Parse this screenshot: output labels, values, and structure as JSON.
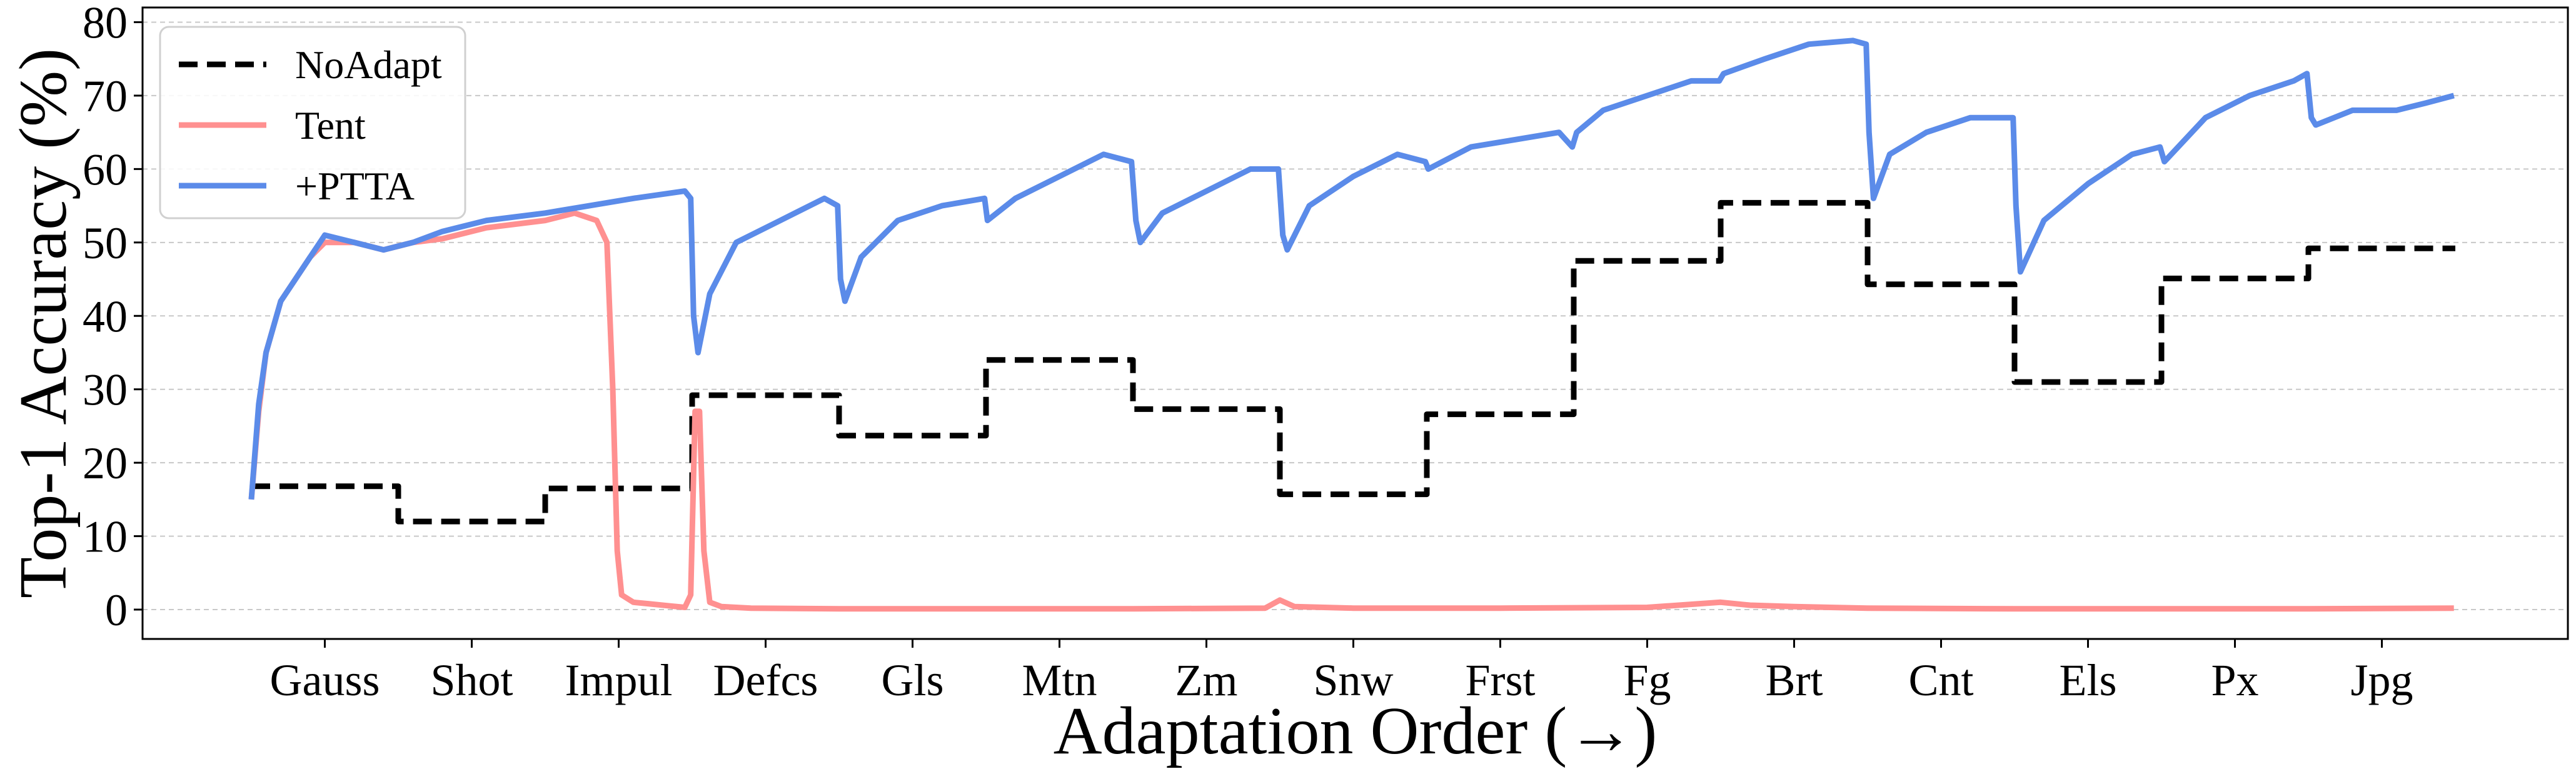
{
  "chart_data": {
    "type": "line",
    "ylabel": "Top-1 Accuracy (%)",
    "xlabel": "Adaptation Order (→)",
    "ylim": [
      -4,
      82
    ],
    "yticks": [
      0,
      10,
      20,
      30,
      40,
      50,
      60,
      70,
      80
    ],
    "grid": "horizontal-dashed",
    "legend_position": "top-left",
    "categories": [
      "Gauss",
      "Shot",
      "Impul",
      "Defcs",
      "Gls",
      "Mtn",
      "Zm",
      "Snw",
      "Frst",
      "Fg",
      "Brt",
      "Cnt",
      "Els",
      "Px",
      "Jpg"
    ],
    "series": [
      {
        "name": "NoAdapt",
        "color": "#000000",
        "style": "dashed",
        "values": [
          16.8,
          12.0,
          16.5,
          29.2,
          23.7,
          34.0,
          27.3,
          15.7,
          26.6,
          47.5,
          55.4,
          44.3,
          31.0,
          45.1,
          49.2
        ]
      },
      {
        "name": "Tent",
        "color": "#ff9090",
        "style": "solid",
        "points": [
          [
            0.0,
            15
          ],
          [
            0.05,
            27
          ],
          [
            0.1,
            35
          ],
          [
            0.2,
            42
          ],
          [
            0.3,
            45
          ],
          [
            0.4,
            48
          ],
          [
            0.5,
            50
          ],
          [
            0.7,
            50
          ],
          [
            0.9,
            49
          ],
          [
            1.1,
            50
          ],
          [
            1.3,
            50.5
          ],
          [
            1.6,
            52
          ],
          [
            2.0,
            53
          ],
          [
            2.2,
            54
          ],
          [
            2.35,
            53
          ],
          [
            2.42,
            50
          ],
          [
            2.46,
            30
          ],
          [
            2.49,
            8
          ],
          [
            2.52,
            2
          ],
          [
            2.6,
            1
          ],
          [
            2.7,
            0.8
          ],
          [
            2.85,
            0.5
          ],
          [
            2.95,
            0.3
          ],
          [
            2.99,
            2
          ],
          [
            3.02,
            27
          ],
          [
            3.05,
            27
          ],
          [
            3.08,
            8
          ],
          [
            3.12,
            1
          ],
          [
            3.2,
            0.4
          ],
          [
            3.4,
            0.2
          ],
          [
            4.0,
            0.1
          ],
          [
            5.0,
            0.1
          ],
          [
            6.0,
            0.1
          ],
          [
            6.9,
            0.2
          ],
          [
            7.0,
            1.3
          ],
          [
            7.1,
            0.4
          ],
          [
            7.5,
            0.2
          ],
          [
            8.5,
            0.2
          ],
          [
            9.5,
            0.3
          ],
          [
            10.0,
            1.0
          ],
          [
            10.2,
            0.6
          ],
          [
            10.5,
            0.4
          ],
          [
            11.0,
            0.2
          ],
          [
            12.0,
            0.1
          ],
          [
            13.0,
            0.1
          ],
          [
            14.0,
            0.1
          ],
          [
            14.99,
            0.2
          ]
        ]
      },
      {
        "name": "+PTTA",
        "color": "#5b8be9",
        "style": "solid",
        "points": [
          [
            0.0,
            15
          ],
          [
            0.05,
            28
          ],
          [
            0.1,
            35
          ],
          [
            0.2,
            42
          ],
          [
            0.3,
            45
          ],
          [
            0.4,
            48
          ],
          [
            0.5,
            51
          ],
          [
            0.7,
            50
          ],
          [
            0.9,
            49
          ],
          [
            1.1,
            50
          ],
          [
            1.3,
            51.5
          ],
          [
            1.6,
            53
          ],
          [
            2.0,
            54
          ],
          [
            2.3,
            55
          ],
          [
            2.6,
            56
          ],
          [
            2.95,
            57
          ],
          [
            2.99,
            56
          ],
          [
            3.01,
            40
          ],
          [
            3.04,
            35
          ],
          [
            3.12,
            43
          ],
          [
            3.3,
            50
          ],
          [
            3.6,
            53
          ],
          [
            3.9,
            56
          ],
          [
            3.99,
            55
          ],
          [
            4.01,
            45
          ],
          [
            4.04,
            42
          ],
          [
            4.15,
            48
          ],
          [
            4.4,
            53
          ],
          [
            4.7,
            55
          ],
          [
            4.99,
            56
          ],
          [
            5.01,
            53
          ],
          [
            5.2,
            56
          ],
          [
            5.5,
            59
          ],
          [
            5.8,
            62
          ],
          [
            5.99,
            61
          ],
          [
            6.02,
            53
          ],
          [
            6.05,
            50
          ],
          [
            6.2,
            54
          ],
          [
            6.5,
            57
          ],
          [
            6.8,
            60
          ],
          [
            6.99,
            60
          ],
          [
            7.02,
            51
          ],
          [
            7.05,
            49
          ],
          [
            7.2,
            55
          ],
          [
            7.5,
            59
          ],
          [
            7.8,
            62
          ],
          [
            7.99,
            61
          ],
          [
            8.01,
            60
          ],
          [
            8.3,
            63
          ],
          [
            8.6,
            64
          ],
          [
            8.9,
            65
          ],
          [
            8.99,
            63
          ],
          [
            9.02,
            65
          ],
          [
            9.2,
            68
          ],
          [
            9.5,
            70
          ],
          [
            9.8,
            72
          ],
          [
            9.99,
            72
          ],
          [
            10.02,
            73
          ],
          [
            10.3,
            75
          ],
          [
            10.6,
            77
          ],
          [
            10.9,
            77.5
          ],
          [
            10.99,
            77
          ],
          [
            11.01,
            65
          ],
          [
            11.04,
            56
          ],
          [
            11.15,
            62
          ],
          [
            11.4,
            65
          ],
          [
            11.7,
            67
          ],
          [
            11.99,
            67
          ],
          [
            12.01,
            55
          ],
          [
            12.04,
            46
          ],
          [
            12.2,
            53
          ],
          [
            12.5,
            58
          ],
          [
            12.8,
            62
          ],
          [
            12.99,
            63
          ],
          [
            13.02,
            61
          ],
          [
            13.3,
            67
          ],
          [
            13.6,
            70
          ],
          [
            13.9,
            72
          ],
          [
            13.99,
            73
          ],
          [
            14.02,
            67
          ],
          [
            14.05,
            66
          ],
          [
            14.3,
            68
          ],
          [
            14.6,
            68
          ],
          [
            14.8,
            69
          ],
          [
            14.99,
            70
          ]
        ]
      }
    ]
  }
}
